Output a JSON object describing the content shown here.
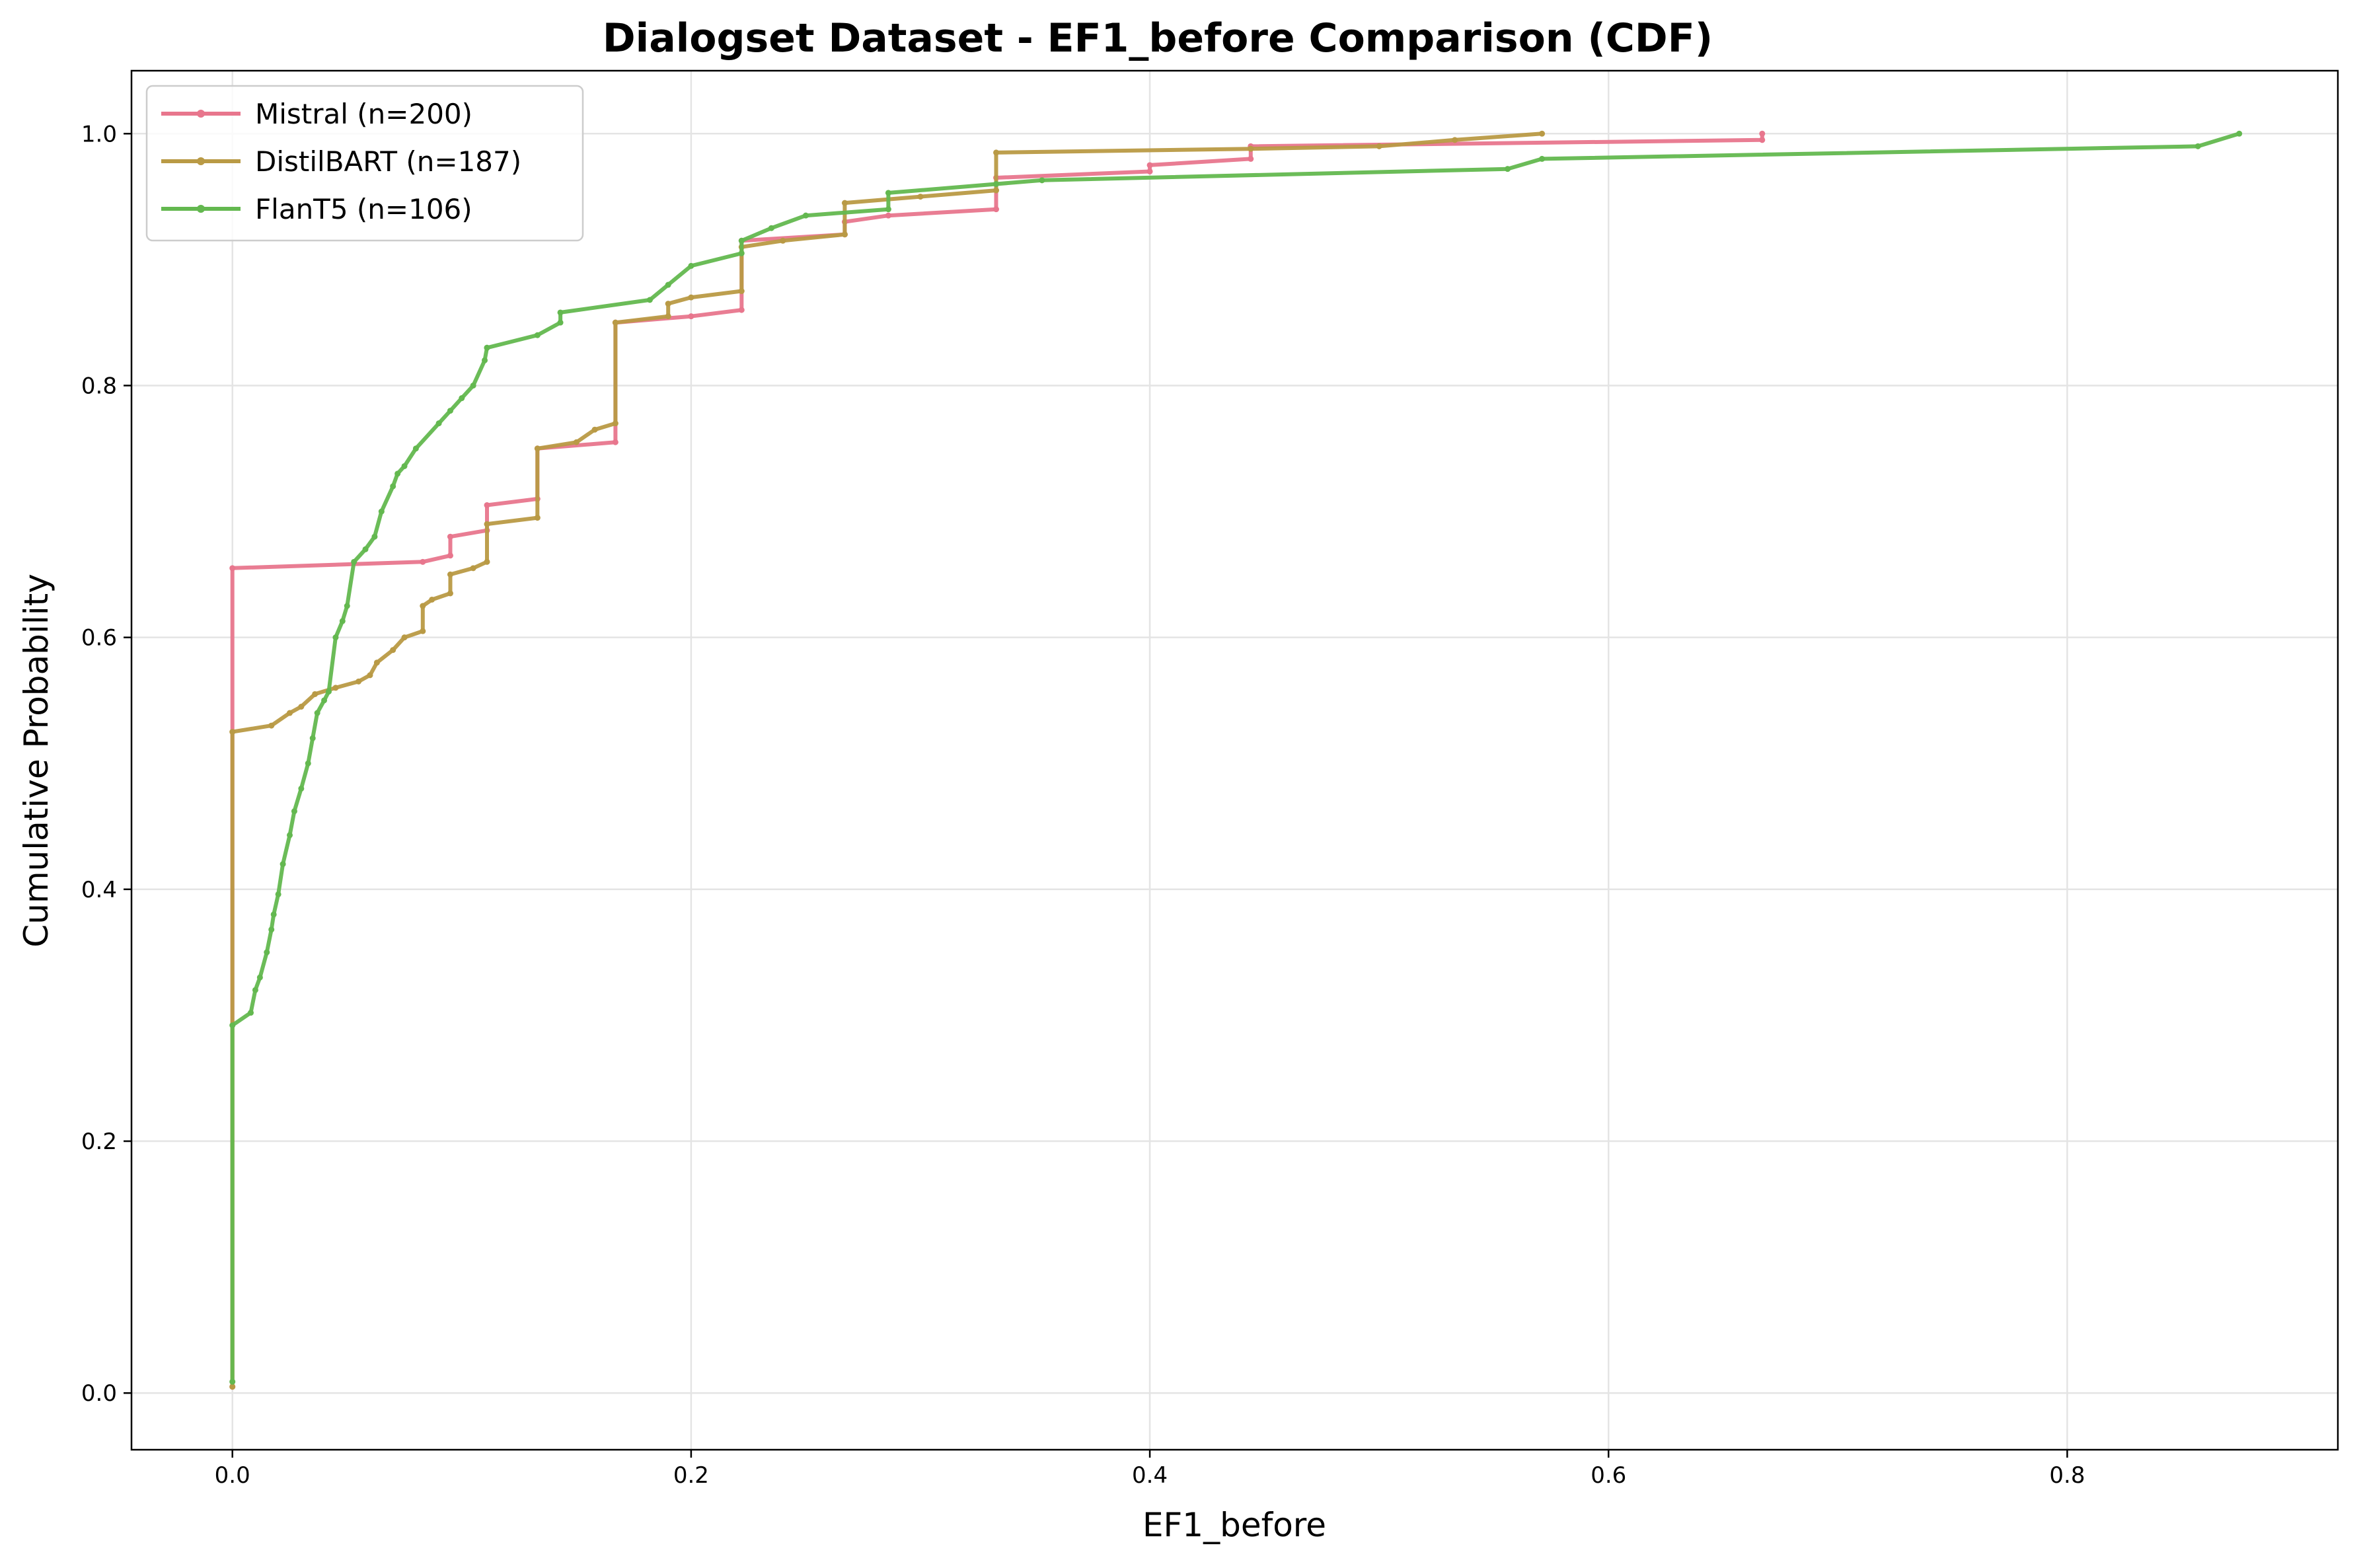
{
  "chart_data": {
    "type": "line",
    "title": "Dialogset Dataset - EF1_before Comparison (CDF)",
    "xlabel": "EF1_before",
    "ylabel": "Cumulative Probability",
    "xlim": [
      -0.044,
      0.918
    ],
    "ylim": [
      -0.045,
      1.05
    ],
    "grid": true,
    "legend_position": "top-left",
    "x_ticks": [
      "0.0",
      "0.2",
      "0.4",
      "0.6",
      "0.8"
    ],
    "y_ticks": [
      "0.0",
      "0.2",
      "0.4",
      "0.6",
      "0.8",
      "1.0"
    ],
    "series": [
      {
        "name": "Mistral (n=200)",
        "color": "#e8768d",
        "x": [
          0,
          0,
          0.083,
          0.095,
          0.095,
          0.111,
          0.111,
          0.133,
          0.133,
          0.167,
          0.167,
          0.2,
          0.222,
          0.222,
          0.267,
          0.267,
          0.286,
          0.333,
          0.333,
          0.4,
          0.4,
          0.444,
          0.444,
          0.667,
          0.667
        ],
        "y": [
          0.005,
          0.655,
          0.66,
          0.665,
          0.68,
          0.685,
          0.705,
          0.71,
          0.75,
          0.755,
          0.85,
          0.855,
          0.86,
          0.915,
          0.92,
          0.93,
          0.935,
          0.94,
          0.965,
          0.97,
          0.975,
          0.98,
          0.99,
          0.995,
          1.0
        ]
      },
      {
        "name": "DistilBART (n=187)",
        "color": "#b99a45",
        "x": [
          0,
          0,
          0.017,
          0.025,
          0.03,
          0.036,
          0.045,
          0.055,
          0.06,
          0.063,
          0.07,
          0.075,
          0.083,
          0.083,
          0.087,
          0.095,
          0.095,
          0.105,
          0.111,
          0.111,
          0.133,
          0.133,
          0.15,
          0.158,
          0.167,
          0.167,
          0.19,
          0.19,
          0.2,
          0.222,
          0.222,
          0.24,
          0.267,
          0.267,
          0.3,
          0.333,
          0.333,
          0.444,
          0.5,
          0.533,
          0.571
        ],
        "y": [
          0.005,
          0.525,
          0.53,
          0.54,
          0.545,
          0.555,
          0.56,
          0.565,
          0.57,
          0.58,
          0.59,
          0.6,
          0.605,
          0.625,
          0.63,
          0.635,
          0.65,
          0.655,
          0.66,
          0.69,
          0.695,
          0.75,
          0.755,
          0.765,
          0.77,
          0.85,
          0.855,
          0.865,
          0.87,
          0.875,
          0.91,
          0.915,
          0.92,
          0.945,
          0.95,
          0.955,
          0.985,
          0.988,
          0.99,
          0.995,
          1.0
        ]
      },
      {
        "name": "FlanT5 (n=106)",
        "color": "#63b84f",
        "x": [
          0,
          0,
          0.008,
          0.01,
          0.012,
          0.015,
          0.017,
          0.018,
          0.02,
          0.022,
          0.025,
          0.027,
          0.03,
          0.033,
          0.035,
          0.037,
          0.04,
          0.042,
          0.045,
          0.048,
          0.05,
          0.053,
          0.058,
          0.062,
          0.065,
          0.07,
          0.072,
          0.075,
          0.08,
          0.09,
          0.095,
          0.1,
          0.105,
          0.11,
          0.111,
          0.111,
          0.133,
          0.143,
          0.143,
          0.182,
          0.19,
          0.2,
          0.222,
          0.222,
          0.235,
          0.25,
          0.286,
          0.286,
          0.333,
          0.353,
          0.556,
          0.571,
          0.857,
          0.875
        ],
        "y": [
          0.009,
          0.292,
          0.302,
          0.32,
          0.33,
          0.35,
          0.368,
          0.38,
          0.396,
          0.42,
          0.443,
          0.462,
          0.48,
          0.5,
          0.52,
          0.54,
          0.55,
          0.557,
          0.6,
          0.613,
          0.625,
          0.66,
          0.67,
          0.68,
          0.7,
          0.72,
          0.73,
          0.736,
          0.75,
          0.77,
          0.78,
          0.79,
          0.8,
          0.82,
          0.83,
          0.83,
          0.84,
          0.85,
          0.858,
          0.868,
          0.88,
          0.895,
          0.905,
          0.915,
          0.925,
          0.935,
          0.94,
          0.953,
          0.96,
          0.963,
          0.972,
          0.98,
          0.99,
          1.0
        ]
      }
    ]
  }
}
